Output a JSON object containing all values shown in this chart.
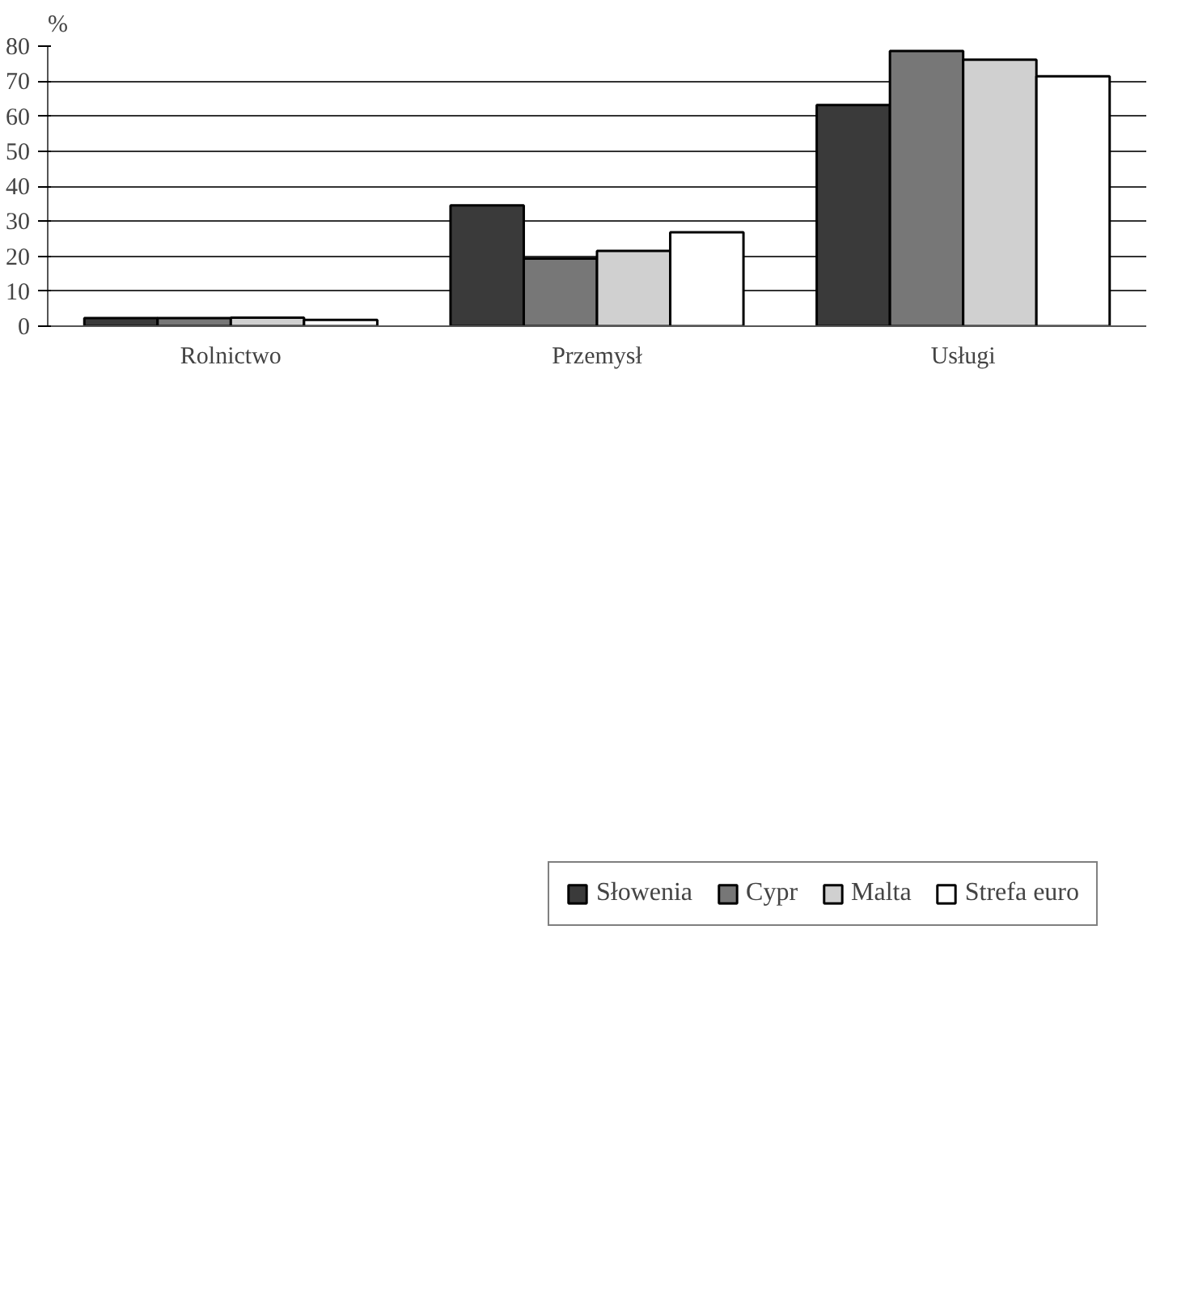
{
  "chart_data": {
    "type": "bar",
    "ylabel": "%",
    "categories": [
      "Rolnictwo",
      "Przemysł",
      "Usługi"
    ],
    "series": [
      {
        "name": "Słowenia",
        "color": "#3a3a3a",
        "values": [
          2.3,
          34.5,
          63.2
        ]
      },
      {
        "name": "Cypr",
        "color": "#777777",
        "values": [
          2.3,
          19.3,
          78.6
        ]
      },
      {
        "name": "Malta",
        "color": "#d0d0d0",
        "values": [
          2.4,
          21.5,
          76.1
        ]
      },
      {
        "name": "Strefa euro",
        "color": "#ffffff",
        "values": [
          1.8,
          26.8,
          71.4
        ]
      }
    ],
    "ylim": [
      0,
      80
    ],
    "yticks": [
      0,
      10,
      20,
      30,
      40,
      50,
      60,
      70,
      80
    ],
    "grid": "y",
    "legend": "bottom"
  }
}
